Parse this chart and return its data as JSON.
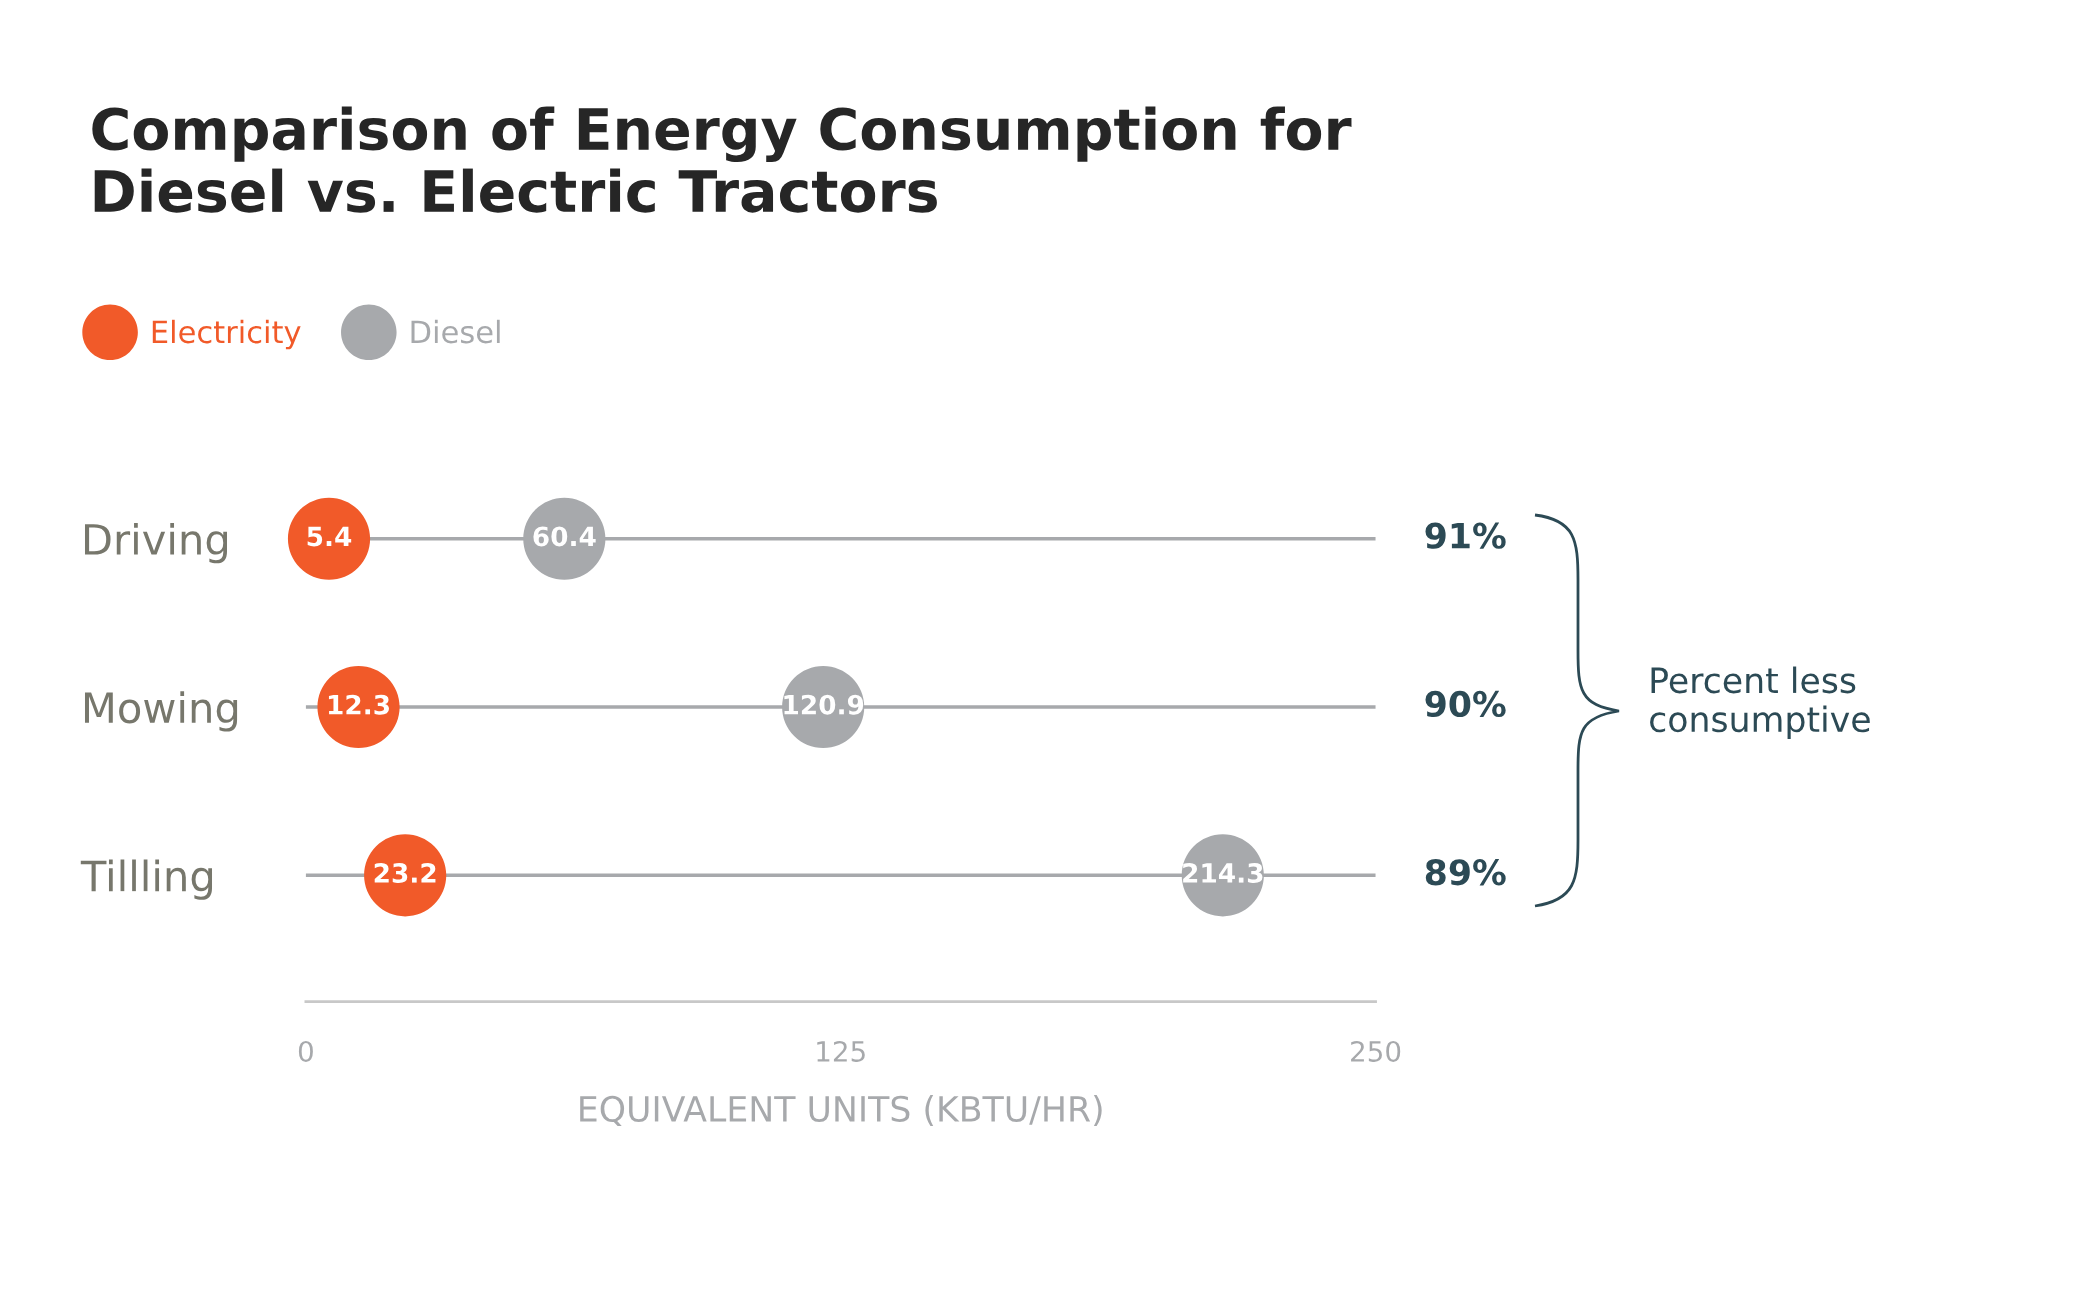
{
  "chart_data": {
    "type": "scatter",
    "orientation": "horizontal",
    "title": "Comparison of Energy Consumption for\nDiesel vs. Electric Tractors",
    "xlabel": "EQUIVALENT UNITS (KBTU/HR)",
    "categories": [
      "Driving",
      "Mowing",
      "Tillling"
    ],
    "series": [
      {
        "name": "Electricity",
        "color": "#f15a29",
        "values": [
          5.4,
          12.3,
          23.2
        ]
      },
      {
        "name": "Diesel",
        "color": "#a7a9ac",
        "values": [
          60.4,
          120.9,
          214.3
        ]
      }
    ],
    "xlim": [
      0,
      250
    ],
    "xticks": [
      0,
      125,
      250
    ],
    "data_labels": true,
    "grid": "y",
    "legend": "top left",
    "annotations": [
      "91%",
      "90%",
      "89%",
      "Percent less\nconsumptive"
    ]
  }
}
